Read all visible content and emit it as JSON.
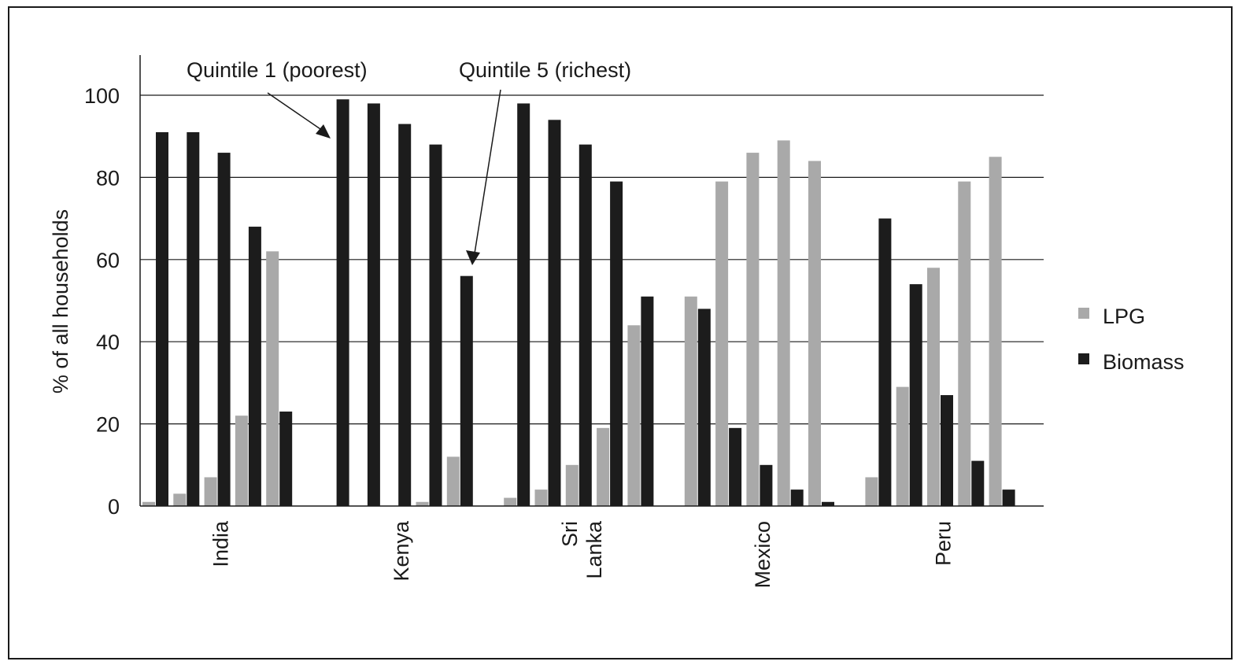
{
  "chart_data": {
    "type": "bar",
    "xlabel": "",
    "ylabel": "% of all households",
    "ylim": [
      0,
      100
    ],
    "yticks": [
      0,
      20,
      40,
      60,
      80,
      100
    ],
    "grid": true,
    "legend_position": "right",
    "categories": [
      "India",
      "Kenya",
      "Sri Lanka",
      "Mexico",
      "Peru"
    ],
    "category_label_lines": [
      [
        "India"
      ],
      [
        "Kenya"
      ],
      [
        "Sri",
        "Lanka"
      ],
      [
        "Mexico"
      ],
      [
        "Peru"
      ]
    ],
    "series": [
      {
        "name": "LPG",
        "color": "#a9a9a9",
        "values": [
          [
            1,
            3,
            7,
            22,
            62
          ],
          [
            0,
            0,
            0,
            1,
            12
          ],
          [
            2,
            4,
            10,
            19,
            44
          ],
          [
            51,
            79,
            86,
            89,
            84
          ],
          [
            7,
            29,
            58,
            79,
            85
          ]
        ]
      },
      {
        "name": "Biomass",
        "color": "#1c1c1c",
        "values": [
          [
            91,
            91,
            86,
            68,
            23
          ],
          [
            99,
            98,
            93,
            88,
            56
          ],
          [
            98,
            94,
            88,
            79,
            51
          ],
          [
            48,
            19,
            10,
            4,
            1
          ],
          [
            70,
            54,
            27,
            11,
            4
          ]
        ]
      }
    ],
    "annotations": [
      {
        "text": "Quintile 1 (poorest)"
      },
      {
        "text": "Quintile 5 (richest)"
      }
    ]
  }
}
